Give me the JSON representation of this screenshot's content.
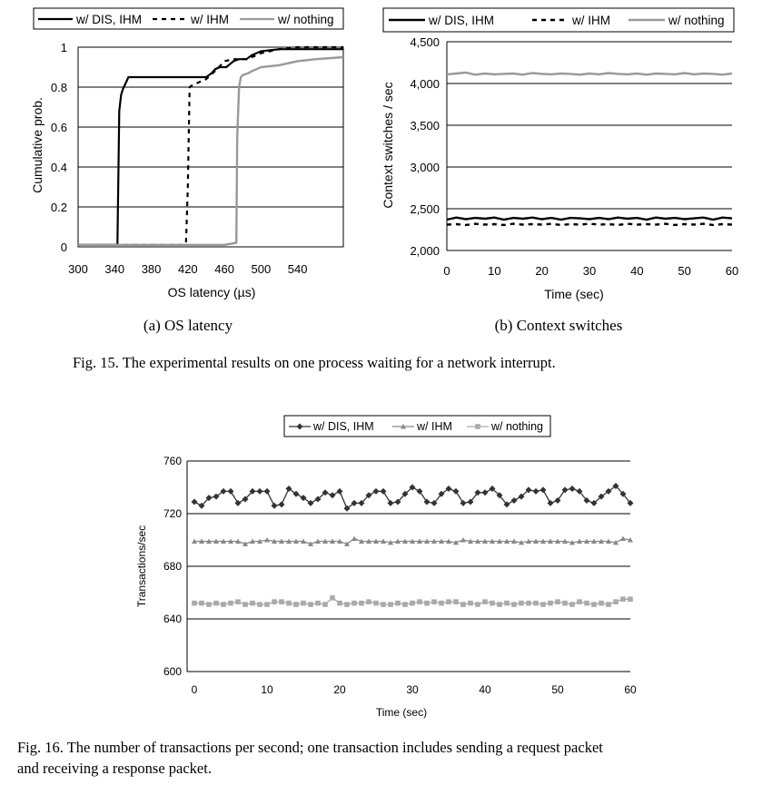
{
  "chart_data": [
    {
      "id": "fig15a",
      "type": "line",
      "subcaption": "(a) OS latency",
      "xlabel": "OS latency (µs)",
      "ylabel": "Cumulative prob.",
      "xlim": [
        300,
        590
      ],
      "ylim": [
        0,
        1
      ],
      "xticks": [
        "300",
        "340",
        "380",
        "420",
        "460",
        "500",
        "540"
      ],
      "yticks": [
        "0",
        "0.2",
        "0.4",
        "0.6",
        "0.8",
        "1"
      ],
      "grid": "horizontal",
      "legend_position": "top",
      "series": [
        {
          "name": "w/ DIS, IHM",
          "color": "#000000",
          "dash": "solid",
          "x": [
            300,
            343,
            345,
            347,
            349,
            352,
            355,
            357,
            360,
            380,
            400,
            440,
            446,
            450,
            455,
            462,
            470,
            476,
            484,
            490,
            500,
            520,
            540,
            560,
            590
          ],
          "y": [
            0.01,
            0.01,
            0.68,
            0.76,
            0.79,
            0.82,
            0.85,
            0.85,
            0.85,
            0.85,
            0.85,
            0.85,
            0.87,
            0.89,
            0.9,
            0.9,
            0.93,
            0.94,
            0.94,
            0.96,
            0.98,
            0.99,
            0.99,
            0.99,
            0.99
          ]
        },
        {
          "name": "w/ IHM",
          "color": "#000000",
          "dash": "dashed",
          "x": [
            300,
            415,
            418,
            420,
            422,
            425,
            430,
            440,
            452,
            460,
            470,
            485,
            500,
            520,
            540,
            560,
            590
          ],
          "y": [
            0.01,
            0.01,
            0.02,
            0.3,
            0.8,
            0.81,
            0.82,
            0.84,
            0.89,
            0.93,
            0.94,
            0.94,
            0.97,
            0.99,
            1.0,
            1.0,
            1.0
          ]
        },
        {
          "name": "w/ nothing",
          "color": "#999999",
          "dash": "solid",
          "x": [
            300,
            340,
            400,
            460,
            473,
            474,
            476,
            478,
            480,
            486,
            490,
            500,
            520,
            540,
            560,
            590
          ],
          "y": [
            0.01,
            0.01,
            0.01,
            0.01,
            0.02,
            0.55,
            0.8,
            0.85,
            0.86,
            0.87,
            0.88,
            0.9,
            0.91,
            0.93,
            0.94,
            0.95
          ]
        }
      ]
    },
    {
      "id": "fig15b",
      "type": "line",
      "subcaption": "(b) Context switches",
      "xlabel": "Time (sec)",
      "ylabel": "Context switches / sec",
      "xlim": [
        0,
        60
      ],
      "ylim": [
        2000,
        4500
      ],
      "xticks": [
        "0",
        "10",
        "20",
        "30",
        "40",
        "50",
        "60"
      ],
      "yticks": [
        "2,000",
        "2,500",
        "3,000",
        "3,500",
        "4,000",
        "4,500"
      ],
      "grid": "horizontal",
      "legend_position": "top",
      "series": [
        {
          "name": "w/ DIS, IHM",
          "color": "#000000",
          "dash": "solid",
          "x": [
            0,
            2,
            4,
            6,
            8,
            10,
            12,
            14,
            16,
            18,
            20,
            22,
            24,
            26,
            28,
            30,
            32,
            34,
            36,
            38,
            40,
            42,
            44,
            46,
            48,
            50,
            52,
            54,
            56,
            58,
            60
          ],
          "y": [
            2370,
            2395,
            2375,
            2390,
            2380,
            2395,
            2370,
            2390,
            2380,
            2395,
            2375,
            2390,
            2370,
            2390,
            2385,
            2375,
            2390,
            2375,
            2395,
            2380,
            2390,
            2370,
            2395,
            2380,
            2390,
            2375,
            2385,
            2395,
            2370,
            2395,
            2385
          ]
        },
        {
          "name": "w/ IHM",
          "color": "#000000",
          "dash": "dashed",
          "x": [
            0,
            2,
            4,
            6,
            8,
            10,
            12,
            14,
            16,
            18,
            20,
            22,
            24,
            26,
            28,
            30,
            32,
            34,
            36,
            38,
            40,
            42,
            44,
            46,
            48,
            50,
            52,
            54,
            56,
            58,
            60
          ],
          "y": [
            2310,
            2315,
            2305,
            2320,
            2310,
            2315,
            2305,
            2320,
            2310,
            2315,
            2310,
            2320,
            2305,
            2315,
            2310,
            2320,
            2310,
            2315,
            2305,
            2320,
            2310,
            2315,
            2310,
            2320,
            2305,
            2315,
            2310,
            2320,
            2305,
            2315,
            2310
          ]
        },
        {
          "name": "w/ nothing",
          "color": "#999999",
          "dash": "solid",
          "x": [
            0,
            2,
            4,
            6,
            8,
            10,
            12,
            14,
            16,
            18,
            20,
            22,
            24,
            26,
            28,
            30,
            32,
            34,
            36,
            38,
            40,
            42,
            44,
            46,
            48,
            50,
            52,
            54,
            56,
            58,
            60
          ],
          "y": [
            4110,
            4120,
            4130,
            4105,
            4120,
            4110,
            4115,
            4120,
            4105,
            4125,
            4115,
            4110,
            4120,
            4115,
            4105,
            4120,
            4110,
            4125,
            4115,
            4110,
            4120,
            4105,
            4120,
            4115,
            4110,
            4125,
            4110,
            4120,
            4115,
            4105,
            4120
          ]
        }
      ]
    },
    {
      "id": "fig16",
      "type": "line",
      "xlabel": "Time (sec)",
      "ylabel": "Transactions/sec",
      "xlim": [
        0,
        60
      ],
      "ylim": [
        600,
        760
      ],
      "xticks": [
        "0",
        "10",
        "20",
        "30",
        "40",
        "50",
        "60"
      ],
      "yticks": [
        "600",
        "640",
        "680",
        "720",
        "760"
      ],
      "grid": "horizontal",
      "legend_position": "top",
      "series": [
        {
          "name": "w/ DIS, IHM",
          "color": "#333333",
          "marker": "diamond",
          "x": [
            0,
            1,
            2,
            3,
            4,
            5,
            6,
            7,
            8,
            9,
            10,
            11,
            12,
            13,
            14,
            15,
            16,
            17,
            18,
            19,
            20,
            21,
            22,
            23,
            24,
            25,
            26,
            27,
            28,
            29,
            30,
            31,
            32,
            33,
            34,
            35,
            36,
            37,
            38,
            39,
            40,
            41,
            42,
            43,
            44,
            45,
            46,
            47,
            48,
            49,
            50,
            51,
            52,
            53,
            54,
            55,
            56,
            57,
            58,
            59,
            60
          ],
          "y": [
            729,
            726,
            732,
            733,
            737,
            737,
            728,
            731,
            737,
            737,
            737,
            726,
            727,
            739,
            735,
            732,
            728,
            731,
            736,
            734,
            737,
            724,
            728,
            728,
            734,
            737,
            737,
            728,
            729,
            735,
            740,
            737,
            729,
            728,
            735,
            739,
            737,
            728,
            729,
            736,
            736,
            739,
            734,
            727,
            730,
            733,
            738,
            737,
            738,
            728,
            730,
            738,
            739,
            737,
            730,
            728,
            733,
            737,
            741,
            735,
            728
          ]
        },
        {
          "name": "w/ IHM",
          "color": "#888888",
          "marker": "triangle",
          "x": [
            0,
            1,
            2,
            3,
            4,
            5,
            6,
            7,
            8,
            9,
            10,
            11,
            12,
            13,
            14,
            15,
            16,
            17,
            18,
            19,
            20,
            21,
            22,
            23,
            24,
            25,
            26,
            27,
            28,
            29,
            30,
            31,
            32,
            33,
            34,
            35,
            36,
            37,
            38,
            39,
            40,
            41,
            42,
            43,
            44,
            45,
            46,
            47,
            48,
            49,
            50,
            51,
            52,
            53,
            54,
            55,
            56,
            57,
            58,
            59,
            60
          ],
          "y": [
            699,
            699,
            699,
            699,
            699,
            699,
            699,
            697,
            699,
            699,
            700,
            699,
            699,
            699,
            699,
            699,
            697,
            699,
            699,
            699,
            699,
            697,
            701,
            699,
            699,
            699,
            699,
            698,
            699,
            699,
            699,
            699,
            699,
            699,
            699,
            699,
            698,
            700,
            699,
            699,
            699,
            699,
            699,
            699,
            699,
            698,
            699,
            699,
            699,
            699,
            699,
            699,
            698,
            699,
            699,
            699,
            699,
            699,
            698,
            701,
            700
          ]
        },
        {
          "name": "w/ nothing",
          "color": "#aaaaaa",
          "marker": "square",
          "x": [
            0,
            1,
            2,
            3,
            4,
            5,
            6,
            7,
            8,
            9,
            10,
            11,
            12,
            13,
            14,
            15,
            16,
            17,
            18,
            19,
            20,
            21,
            22,
            23,
            24,
            25,
            26,
            27,
            28,
            29,
            30,
            31,
            32,
            33,
            34,
            35,
            36,
            37,
            38,
            39,
            40,
            41,
            42,
            43,
            44,
            45,
            46,
            47,
            48,
            49,
            50,
            51,
            52,
            53,
            54,
            55,
            56,
            57,
            58,
            59,
            60
          ],
          "y": [
            652,
            652,
            651,
            652,
            651,
            652,
            653,
            651,
            652,
            651,
            651,
            653,
            653,
            652,
            651,
            652,
            651,
            652,
            651,
            656,
            652,
            651,
            652,
            652,
            653,
            652,
            651,
            651,
            652,
            651,
            652,
            653,
            652,
            653,
            652,
            653,
            653,
            651,
            652,
            651,
            653,
            652,
            651,
            652,
            651,
            652,
            652,
            652,
            651,
            652,
            653,
            652,
            651,
            653,
            652,
            651,
            652,
            651,
            653,
            655,
            655
          ]
        }
      ]
    }
  ],
  "captions": {
    "fig15": "Fig. 15.   The experimental results on one process waiting for a network interrupt.",
    "fig16_line1": "Fig. 16.   The number of transactions per second; one transaction includes sending a request packet",
    "fig16_line2": "and receiving a response packet."
  }
}
